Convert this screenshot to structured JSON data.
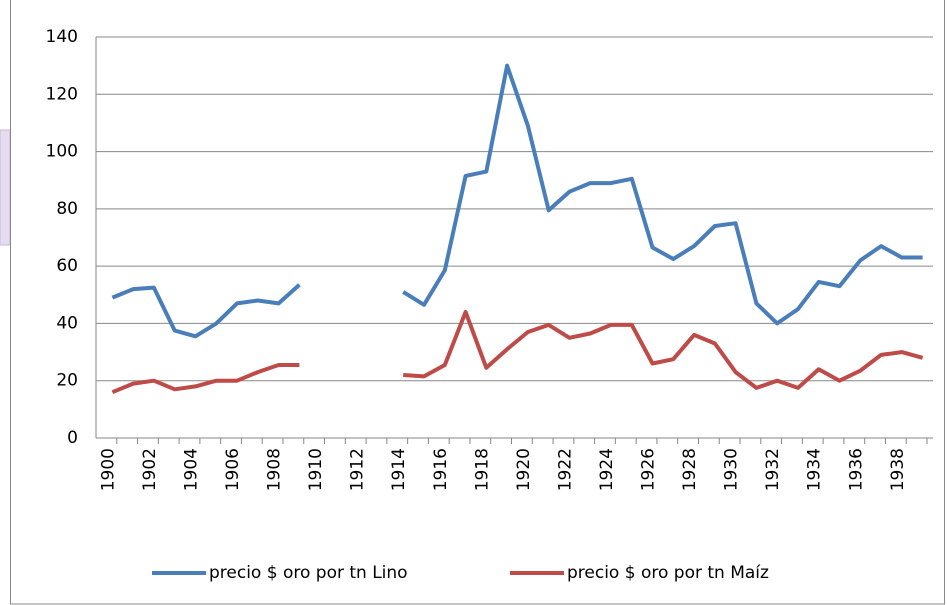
{
  "chart_data": {
    "type": "line",
    "categories": [
      "1900",
      null,
      "1902",
      null,
      "1904",
      null,
      "1906",
      null,
      "1908",
      null,
      "1910",
      null,
      "1912",
      null,
      "1914",
      null,
      "1916",
      null,
      "1918",
      null,
      "1920",
      null,
      "1922",
      null,
      "1924",
      null,
      "1926",
      null,
      "1928",
      null,
      "1930",
      null,
      "1932",
      null,
      "1934",
      null,
      "1936",
      null,
      "1938",
      null
    ],
    "series": [
      {
        "name": "precio $ oro por tn Lino",
        "color": "#4a7ebb",
        "values": [
          49,
          52,
          52.5,
          37.5,
          35.5,
          40,
          47,
          48,
          47,
          53.5,
          null,
          null,
          null,
          null,
          51,
          46.5,
          58.5,
          91.5,
          93,
          130,
          109,
          79.5,
          86,
          89,
          89,
          90.5,
          66.5,
          62.5,
          67,
          74,
          75,
          47,
          40,
          45,
          54.5,
          53,
          62,
          67,
          63,
          63
        ]
      },
      {
        "name": "precio $ oro por tn Maíz",
        "color": "#be4b48",
        "values": [
          16,
          19,
          20,
          17,
          18,
          20,
          20,
          23,
          25.5,
          25.5,
          null,
          null,
          null,
          null,
          22,
          21.5,
          25.5,
          44,
          24.5,
          31,
          37,
          39.5,
          35,
          36.5,
          39.5,
          39.5,
          26,
          27.5,
          36,
          33,
          23,
          17.5,
          20,
          17.5,
          24,
          20,
          23.5,
          29,
          30,
          28
        ]
      }
    ],
    "ylim": [
      0,
      140
    ],
    "yticks": [
      0,
      20,
      40,
      60,
      80,
      100,
      120,
      140
    ],
    "grid": true,
    "legend": "bottom"
  }
}
